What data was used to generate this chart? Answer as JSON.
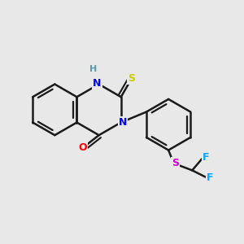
{
  "background_color": "#e8e8e8",
  "bond_color": "#1a1a1a",
  "bond_width": 1.8,
  "atom_colors": {
    "N": "#0000ff",
    "O": "#ff0000",
    "S_thione": "#cccc00",
    "S_sulfide": "#cc00cc",
    "F": "#00aaff",
    "H": "#5599aa"
  },
  "font_size_atoms": 9,
  "fig_width": 3.0,
  "fig_height": 3.0,
  "dpi": 100
}
